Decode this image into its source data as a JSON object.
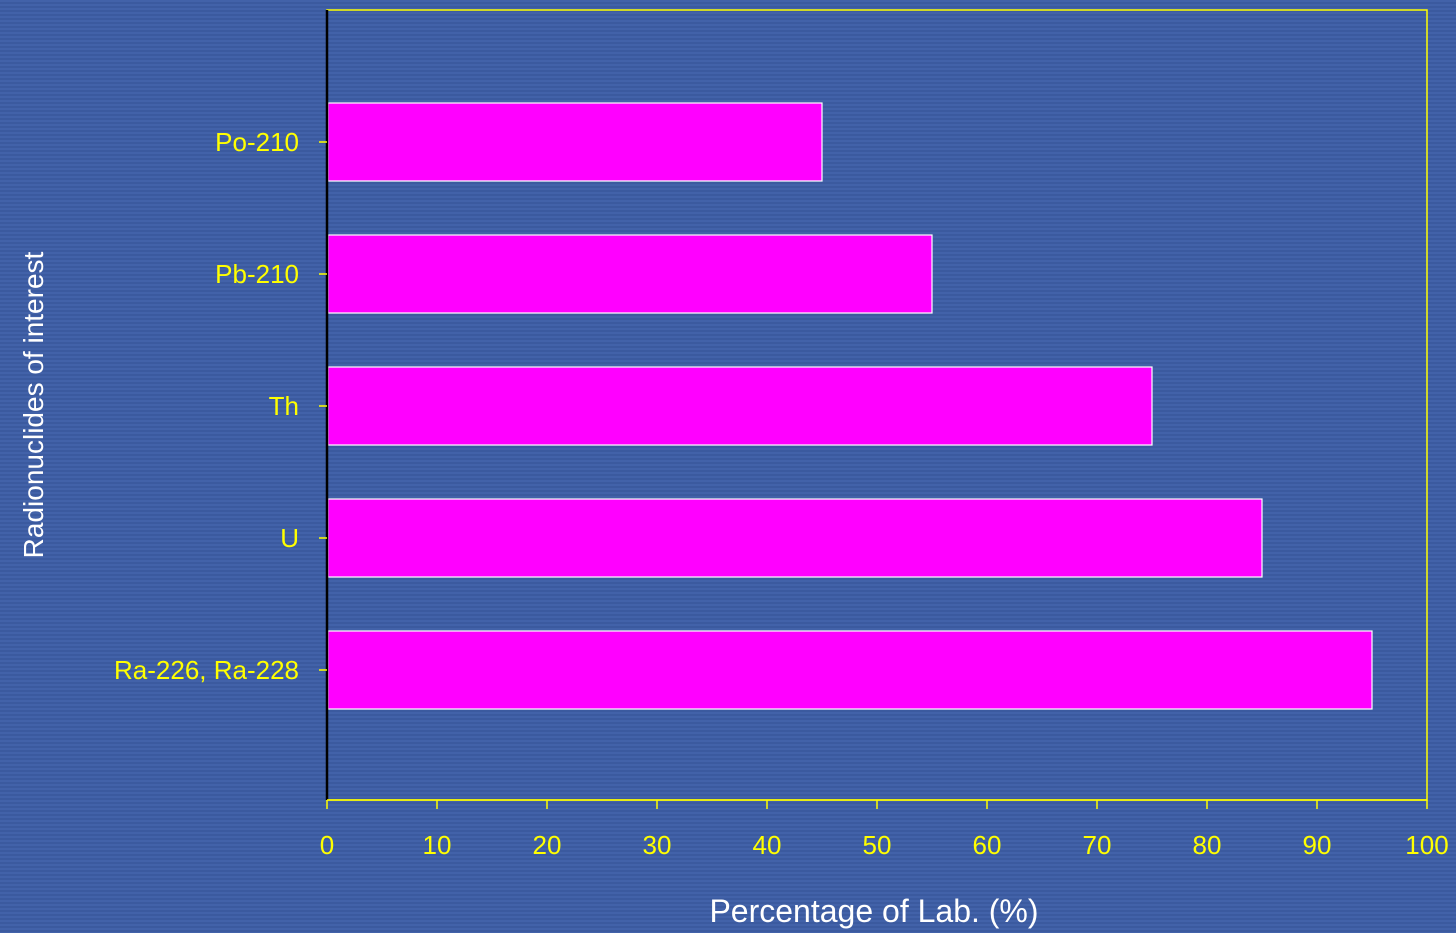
{
  "colors": {
    "background": "#3f5ea6",
    "bar_fill": "#ff00ff",
    "bar_stroke": "#ffffff",
    "axis": "#ffff00",
    "tick_label": "#ffff00",
    "axis_title": "#ffffff"
  },
  "chart_data": {
    "type": "bar",
    "orientation": "horizontal",
    "categories": [
      "Po-210",
      "Pb-210",
      "Th",
      "U",
      "Ra-226, Ra-228"
    ],
    "values": [
      45,
      55,
      75,
      85,
      95
    ],
    "xlabel": "Percentage of Lab. (%)",
    "ylabel": "Radionuclides of interest",
    "xlim": [
      0,
      100
    ],
    "xticks": [
      "0",
      "10",
      "20",
      "30",
      "40",
      "50",
      "60",
      "70",
      "80",
      "90",
      "100"
    ],
    "grid": false,
    "legend": "none"
  }
}
